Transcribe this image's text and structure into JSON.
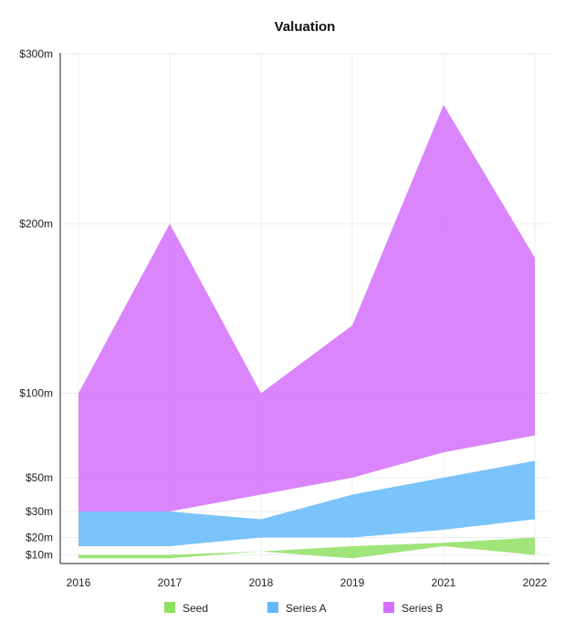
{
  "chart_data": {
    "type": "area",
    "title": "Valuation",
    "xlabel": "",
    "ylabel": "",
    "categories": [
      "2016",
      "2017",
      "2018",
      "2019",
      "2021",
      "2022"
    ],
    "y_ticks": [
      {
        "value": 10,
        "label": "$10m"
      },
      {
        "value": 20,
        "label": "$20m"
      },
      {
        "value": 30,
        "label": "$30m"
      },
      {
        "value": 50,
        "label": "$50m"
      },
      {
        "value": 100,
        "label": "$100m"
      },
      {
        "value": 200,
        "label": "$200m"
      },
      {
        "value": 300,
        "label": "$300m"
      }
    ],
    "ylim": [
      5,
      300
    ],
    "grid": true,
    "legend_position": "bottom",
    "series": [
      {
        "name": "Seed",
        "color": "#8ee062",
        "low": [
          8,
          8,
          12,
          8,
          15,
          10
        ],
        "high": [
          10,
          10,
          12,
          15,
          17,
          20
        ]
      },
      {
        "name": "Series A",
        "color": "#64b8fa",
        "low": [
          15,
          15,
          20,
          20,
          23,
          27
        ],
        "high": [
          30,
          30,
          27,
          40,
          50,
          60
        ]
      },
      {
        "name": "Series B",
        "color": "#d470fb",
        "low": [
          30,
          30,
          40,
          50,
          65,
          75
        ],
        "high": [
          100,
          200,
          100,
          140,
          270,
          180
        ]
      }
    ]
  }
}
